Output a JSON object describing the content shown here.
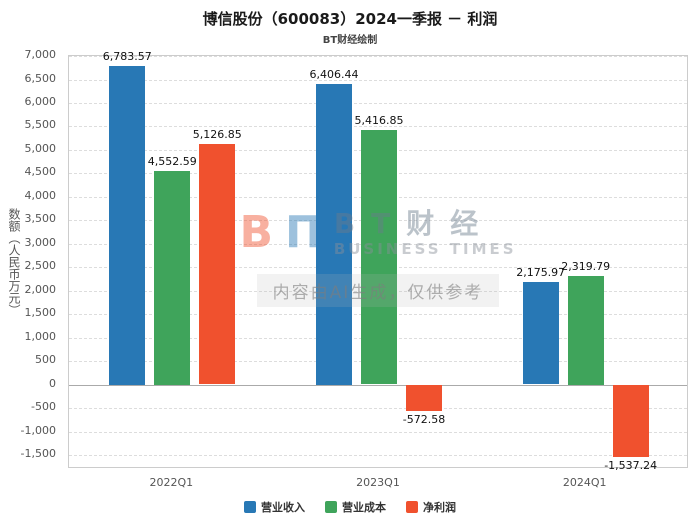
{
  "watermark": {
    "brand_cn": "BT财经",
    "brand_en": "BUSINESS TIMES",
    "ai_notice": "内容由AI生成，仅供参考"
  },
  "chart_data": {
    "type": "bar",
    "title": "博信股份（600083）2024一季报 － 利润",
    "subtitle": "BT财经绘制",
    "ylabel": "数额（人民币万元）",
    "xlabel": "",
    "categories": [
      "2022Q1",
      "2023Q1",
      "2024Q1"
    ],
    "series": [
      {
        "key": "revenue",
        "name": "营业收入",
        "color": "#2878b5",
        "values": [
          6783.57,
          6406.44,
          2175.97
        ]
      },
      {
        "key": "cost",
        "name": "营业成本",
        "color": "#3fa45b",
        "values": [
          4552.59,
          5416.85,
          2319.79
        ]
      },
      {
        "key": "net-profit",
        "name": "净利润",
        "color": "#f0512e",
        "values": [
          5126.85,
          -572.58,
          -1537.24
        ]
      }
    ],
    "ylim": [
      -1800,
      7000
    ],
    "yticks": {
      "max": 7000,
      "min": -1500,
      "step": 500
    },
    "grid": true,
    "legend_position": "bottom"
  }
}
